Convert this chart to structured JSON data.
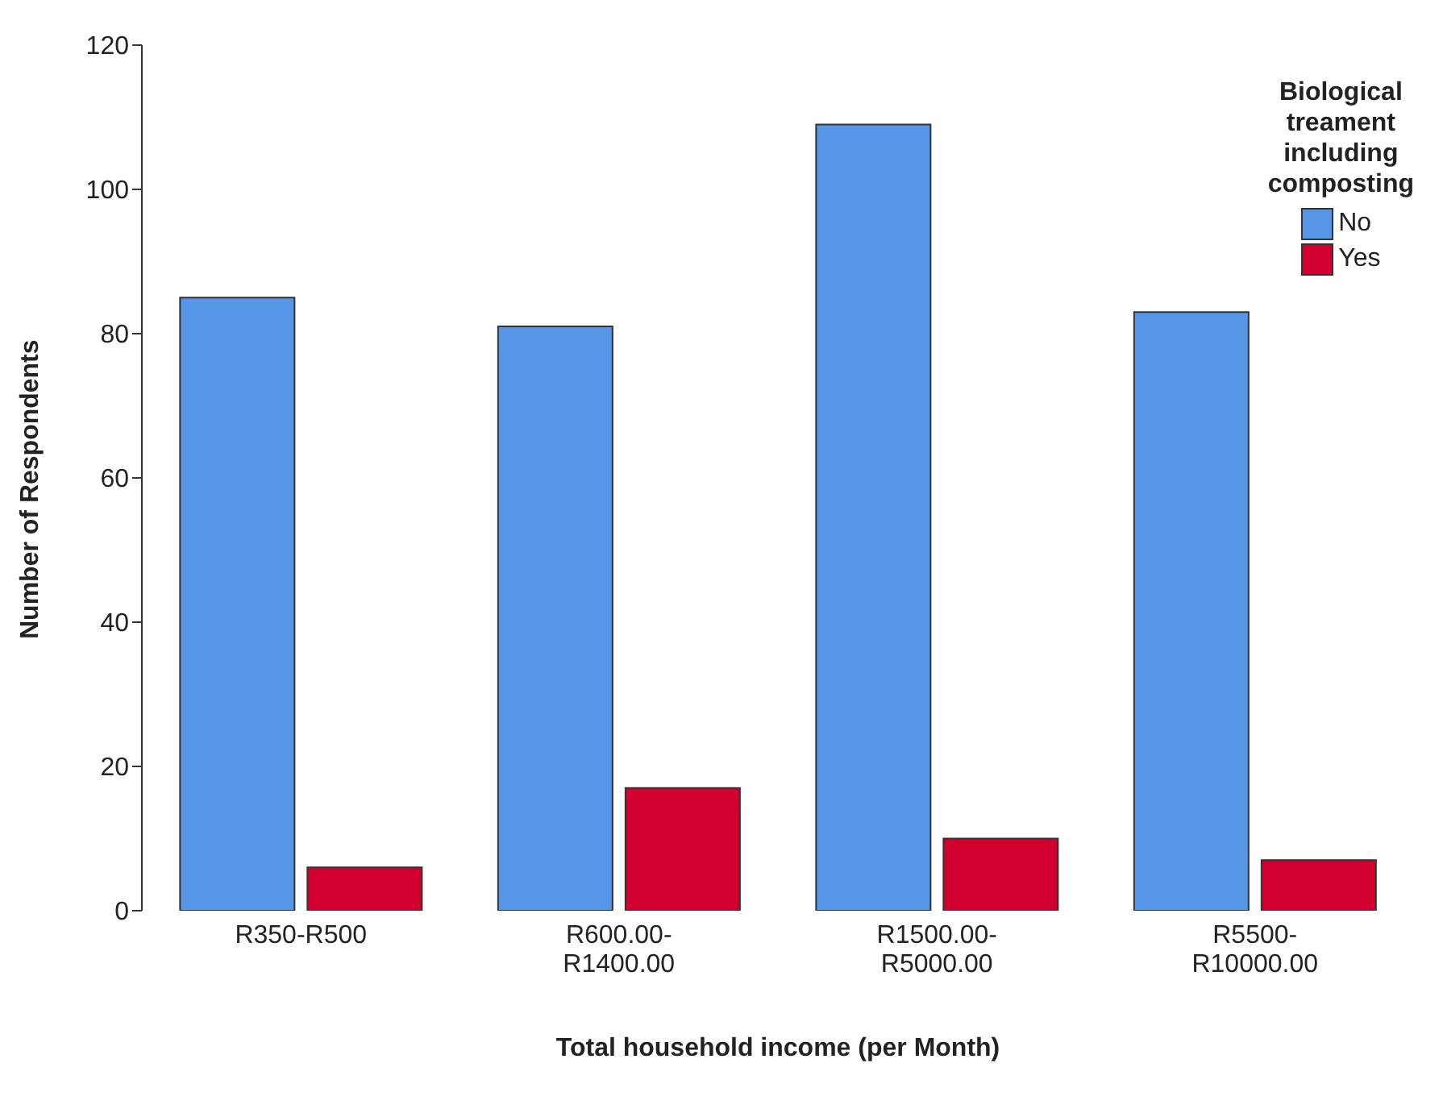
{
  "chart_data": {
    "type": "bar",
    "xlabel": "Total household income (per Month)",
    "ylabel": "Number of Respondents",
    "legend_title": "Biological treament including composting",
    "categories": [
      "R350-R500",
      "R600.00-R1400.00",
      "R1500.00-R5000.00",
      "R5500-R10000.00"
    ],
    "series": [
      {
        "name": "No",
        "color": "#5596e6",
        "values": [
          85,
          81,
          109,
          83
        ]
      },
      {
        "name": "Yes",
        "color": "#d1002f",
        "values": [
          6,
          17,
          10,
          7
        ]
      }
    ],
    "ylim": [
      0,
      120
    ],
    "yticks": [
      0,
      20,
      40,
      60,
      80,
      100,
      120
    ],
    "legend": "top right"
  }
}
